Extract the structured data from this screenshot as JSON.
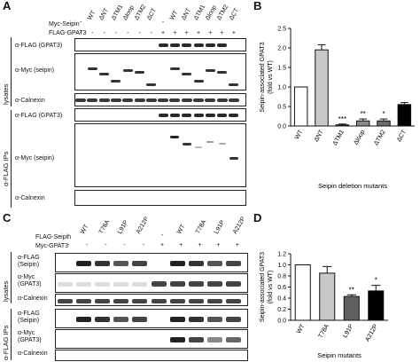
{
  "panels": {
    "A": {
      "letter": "A",
      "row_labels": {
        "myc": "Myc-Seipin",
        "flag": "FLAG-GPAT3"
      },
      "lanes": [
        "WT",
        "ΔNT",
        "ΔTM1",
        "Δloop",
        "ΔTM2",
        "ΔCT",
        "WT",
        "ΔNT",
        "ΔTM1",
        "Δloop",
        "ΔTM2",
        "ΔCT"
      ],
      "myc_symbols": [
        "-",
        "",
        "",
        "",
        "",
        "",
        "",
        "-",
        "",
        "",
        "",
        "",
        "",
        ""
      ],
      "flag_symbols": [
        "-",
        "-",
        "-",
        "-",
        "-",
        "-",
        "-",
        "+",
        "+",
        "+",
        "+",
        "+",
        "+",
        "+"
      ],
      "group_labels": {
        "lysates": "lysates",
        "ips": "α-FLAG IPs"
      },
      "blot_labels": [
        "α-FLAG (GPAT3)",
        "α-Myc (seipin)",
        "α-Calnexin",
        "α-FLAG (GPAT3)",
        "α-Myc (seipin)",
        "α-Calnexin"
      ]
    },
    "C": {
      "letter": "C",
      "row_labels": {
        "flag": "FLAG-Seipin",
        "myc": "Myc-GPAT3"
      },
      "lanes": [
        "WT",
        "T78A",
        "L91P",
        "A212P",
        "WT",
        "T78A",
        "L91P",
        "A212P"
      ],
      "flag_symbols": [
        "-",
        "",
        "",
        "",
        "",
        "-",
        "",
        "",
        "",
        ""
      ],
      "myc_symbols": [
        "-",
        "-",
        "-",
        "-",
        "-",
        "+",
        "+",
        "+",
        "+",
        "+"
      ],
      "group_labels": {
        "lysates": "lysates",
        "ips": "α-FLAG IPs"
      },
      "blot_labels": [
        "α-FLAG\n(Seipin)",
        "α-Myc\n(GPAT3)",
        "α-Calnexin",
        "α-FLAG\n(Seipin)",
        "α-Myc\n(GPAT3)",
        "α-Calnexin"
      ]
    },
    "B": {
      "letter": "B"
    },
    "D": {
      "letter": "D"
    }
  },
  "chart_data": [
    {
      "type": "bar",
      "panel": "B",
      "categories": [
        "WT",
        "ΔNT",
        "ΔTM1",
        "Δloop",
        "ΔTM2",
        "ΔCT"
      ],
      "values": [
        1.0,
        1.95,
        0.03,
        0.13,
        0.13,
        0.55
      ],
      "errors": [
        0.0,
        0.13,
        0.02,
        0.05,
        0.05,
        0.05
      ],
      "significance": [
        "",
        "",
        "***",
        "**",
        "*",
        ""
      ],
      "bar_colors": [
        "#ffffff",
        "#c8c8c8",
        "#4a4a4a",
        "#8a8a8a",
        "#6a6a6a",
        "#000000"
      ],
      "xlabel": "Seipin deletion mutants",
      "ylabel": "Seipin-associated GPAT3 (fold vs WT)",
      "ylim": [
        0,
        2.5
      ],
      "yticks": [
        "0.0",
        "0.5",
        "1.0",
        "1.5",
        "2.0",
        "2.5"
      ]
    },
    {
      "type": "bar",
      "panel": "D",
      "categories": [
        "WT",
        "T78A",
        "L91P",
        "A212P"
      ],
      "values": [
        1.0,
        0.85,
        0.43,
        0.53
      ],
      "errors": [
        0.0,
        0.12,
        0.03,
        0.1
      ],
      "significance": [
        "",
        "",
        "**",
        "*"
      ],
      "bar_colors": [
        "#ffffff",
        "#c8c8c8",
        "#606060",
        "#000000"
      ],
      "xlabel": "Seipin mutants",
      "ylabel": "Seipin-associated GPAT3 (fold vs WT)",
      "ylim": [
        0,
        1.2
      ],
      "yticks": [
        "0.0",
        "0.2",
        "0.4",
        "0.6",
        "0.8",
        "1.0",
        "1.2"
      ]
    }
  ]
}
